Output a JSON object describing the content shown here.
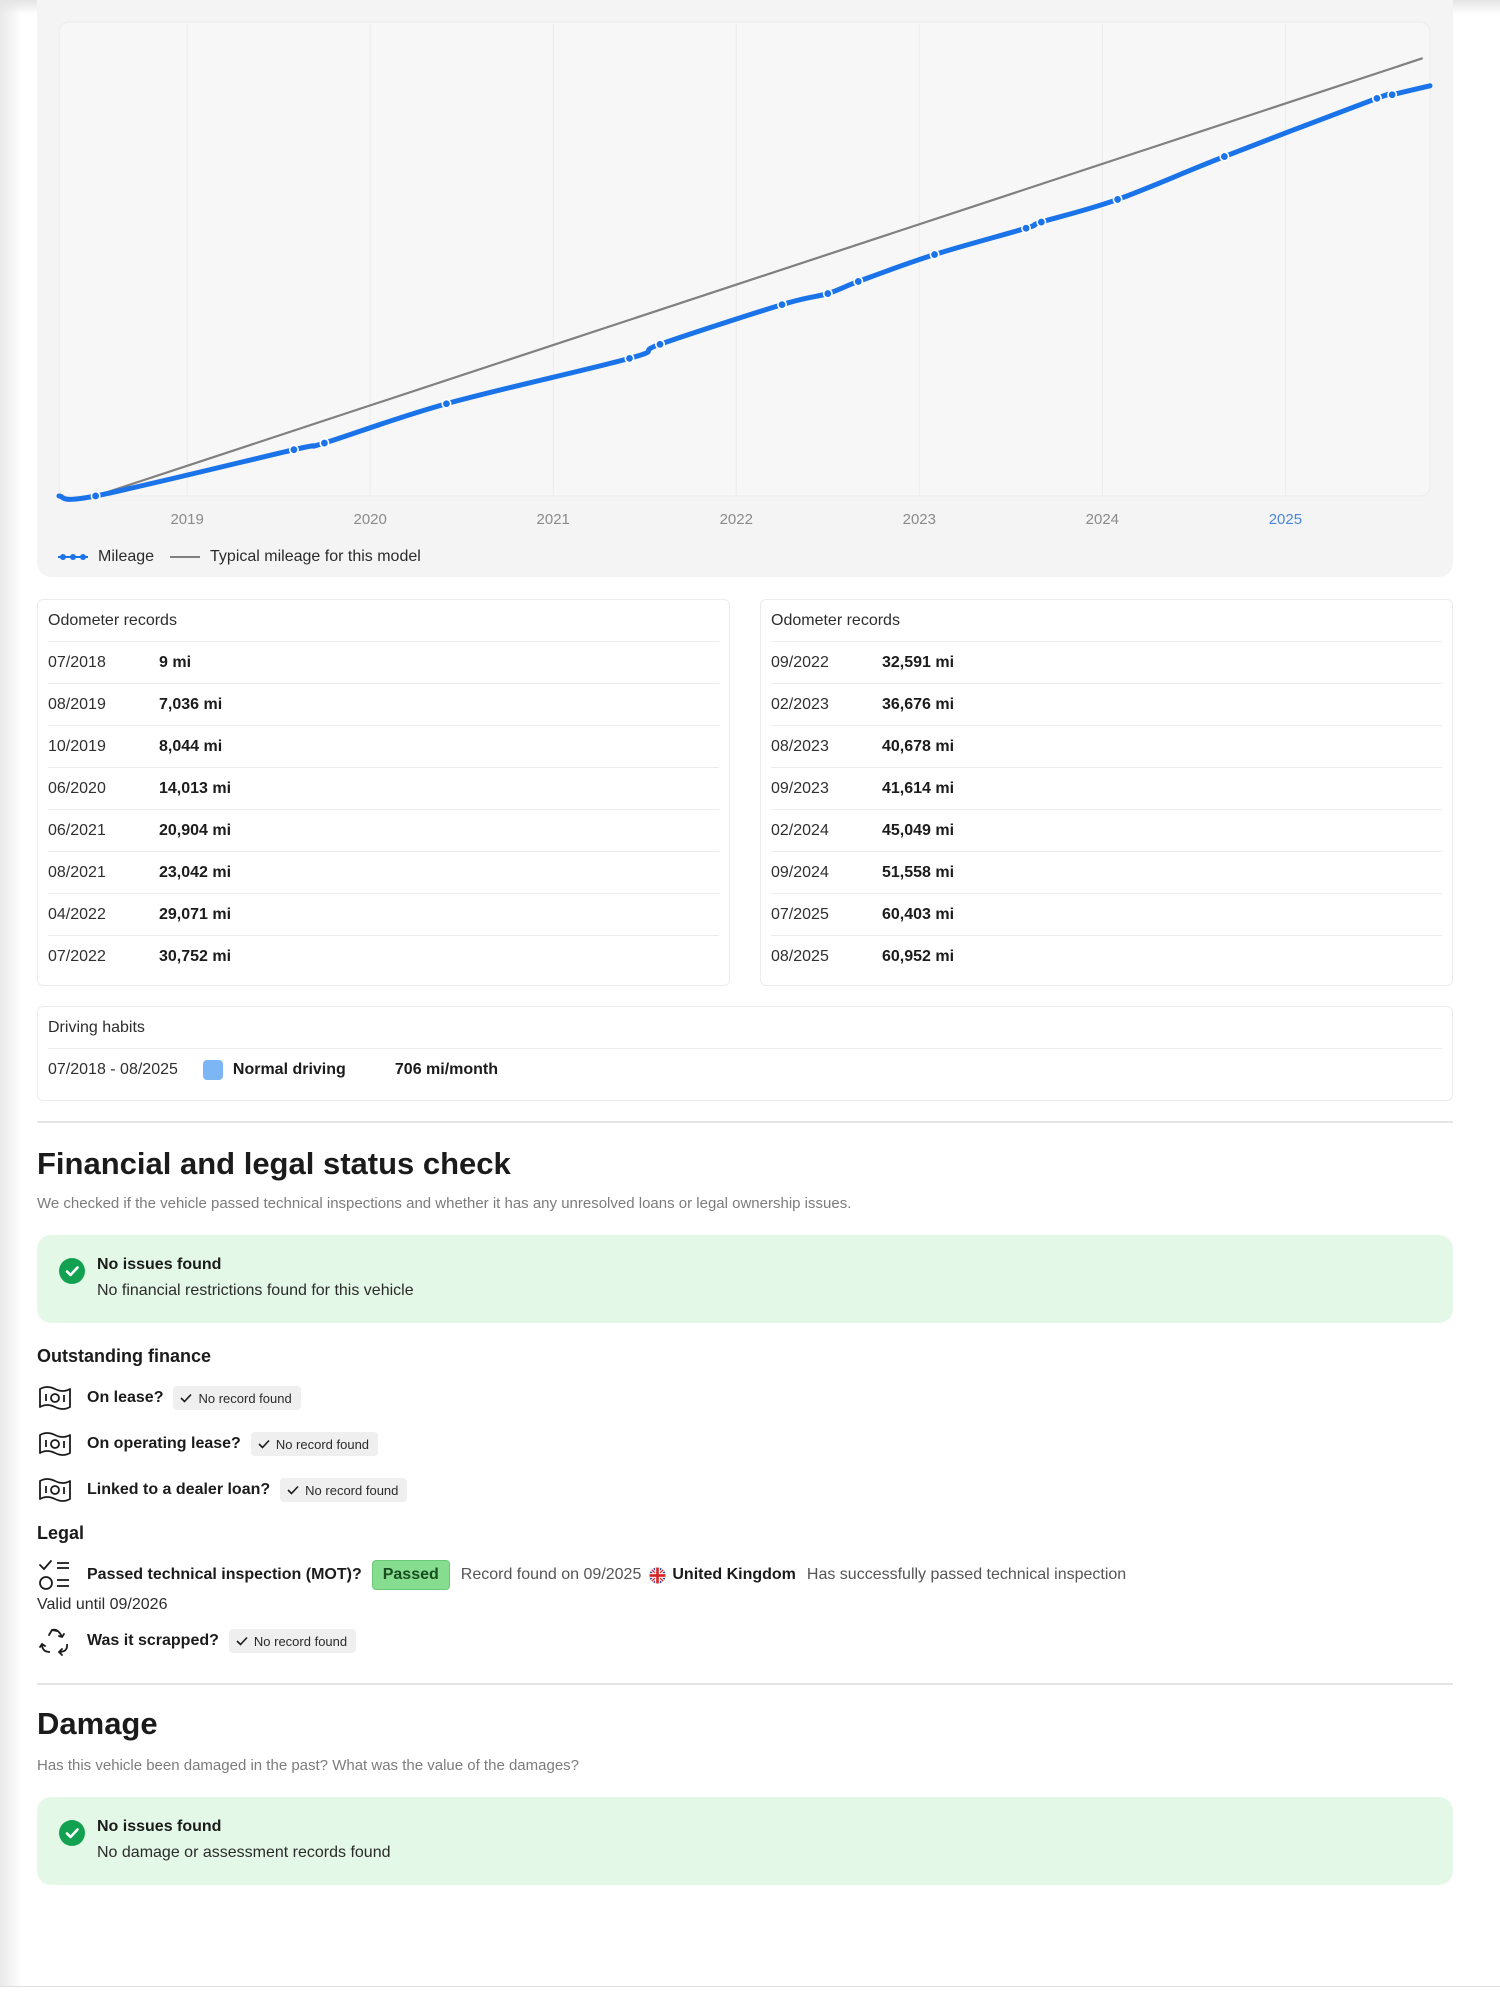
{
  "chart_data": {
    "type": "line",
    "x_axis_labels": [
      "2019",
      "2020",
      "2021",
      "2022",
      "2023",
      "2024",
      "2025"
    ],
    "highlighted_year": "2025",
    "grid": true,
    "legend_position": "bottom-left",
    "series": [
      {
        "name": "Mileage",
        "color": "#1a73e8",
        "points": [
          {
            "x": "07/2018",
            "y": 9
          },
          {
            "x": "08/2019",
            "y": 7036
          },
          {
            "x": "10/2019",
            "y": 8044
          },
          {
            "x": "06/2020",
            "y": 14013
          },
          {
            "x": "06/2021",
            "y": 20904
          },
          {
            "x": "08/2021",
            "y": 23042
          },
          {
            "x": "04/2022",
            "y": 29071
          },
          {
            "x": "07/2022",
            "y": 30752
          },
          {
            "x": "09/2022",
            "y": 32591
          },
          {
            "x": "02/2023",
            "y": 36676
          },
          {
            "x": "08/2023",
            "y": 40678
          },
          {
            "x": "09/2023",
            "y": 41614
          },
          {
            "x": "02/2024",
            "y": 45049
          },
          {
            "x": "09/2024",
            "y": 51558
          },
          {
            "x": "07/2025",
            "y": 60403
          },
          {
            "x": "08/2025",
            "y": 60952
          }
        ]
      },
      {
        "name": "Typical mileage for this model",
        "color": "#808080",
        "points": [
          {
            "x": "07/2018",
            "y": 0
          },
          {
            "x": "10/2025",
            "y": 66500
          }
        ]
      }
    ]
  },
  "odometer": {
    "left": {
      "title": "Odometer records",
      "rows": [
        {
          "date": "07/2018",
          "value": "9 mi"
        },
        {
          "date": "08/2019",
          "value": "7,036 mi"
        },
        {
          "date": "10/2019",
          "value": "8,044 mi"
        },
        {
          "date": "06/2020",
          "value": "14,013 mi"
        },
        {
          "date": "06/2021",
          "value": "20,904 mi"
        },
        {
          "date": "08/2021",
          "value": "23,042 mi"
        },
        {
          "date": "04/2022",
          "value": "29,071 mi"
        },
        {
          "date": "07/2022",
          "value": "30,752 mi"
        }
      ]
    },
    "right": {
      "title": "Odometer records",
      "rows": [
        {
          "date": "09/2022",
          "value": "32,591 mi"
        },
        {
          "date": "02/2023",
          "value": "36,676 mi"
        },
        {
          "date": "08/2023",
          "value": "40,678 mi"
        },
        {
          "date": "09/2023",
          "value": "41,614 mi"
        },
        {
          "date": "02/2024",
          "value": "45,049 mi"
        },
        {
          "date": "09/2024",
          "value": "51,558 mi"
        },
        {
          "date": "07/2025",
          "value": "60,403 mi"
        },
        {
          "date": "08/2025",
          "value": "60,952 mi"
        }
      ]
    }
  },
  "driving_habits": {
    "title": "Driving habits",
    "period": "07/2018 - 08/2025",
    "label": "Normal driving",
    "rate": "706 mi/month",
    "swatch_color": "#7db6f5"
  },
  "financial": {
    "title": "Financial and legal status check",
    "subtitle": "We checked if the vehicle passed technical inspections and whether it has any unresolved loans or legal ownership issues.",
    "status_title": "No issues found",
    "status_text": "No financial restrictions found for this vehicle",
    "outstanding_title": "Outstanding finance",
    "items": [
      {
        "icon": "banknote-icon",
        "label": "On lease?",
        "result": "No record found"
      },
      {
        "icon": "banknote-icon",
        "label": "On operating lease?",
        "result": "No record found"
      },
      {
        "icon": "banknote-icon",
        "label": "Linked to a dealer loan?",
        "result": "No record found"
      }
    ],
    "legal_title": "Legal",
    "mot": {
      "icon": "checklist-icon",
      "label": "Passed technical inspection (MOT)?",
      "badge": "Passed",
      "record": "Record found on 09/2025",
      "country": "United Kingdom",
      "description": "Has successfully passed technical inspection",
      "valid_until": "Valid until 09/2026"
    },
    "scrapped": {
      "icon": "recycle-icon",
      "label": "Was it scrapped?",
      "result": "No record found"
    }
  },
  "damage": {
    "title": "Damage",
    "subtitle": "Has this vehicle been damaged in the past? What was the value of the damages?",
    "status_title": "No issues found",
    "status_text": "No damage or assessment records found"
  },
  "colors": {
    "accent": "#1a73e8",
    "success_bg": "#e3f8e6",
    "success_icon": "#12a150",
    "passed_badge": "#86dd8f"
  }
}
